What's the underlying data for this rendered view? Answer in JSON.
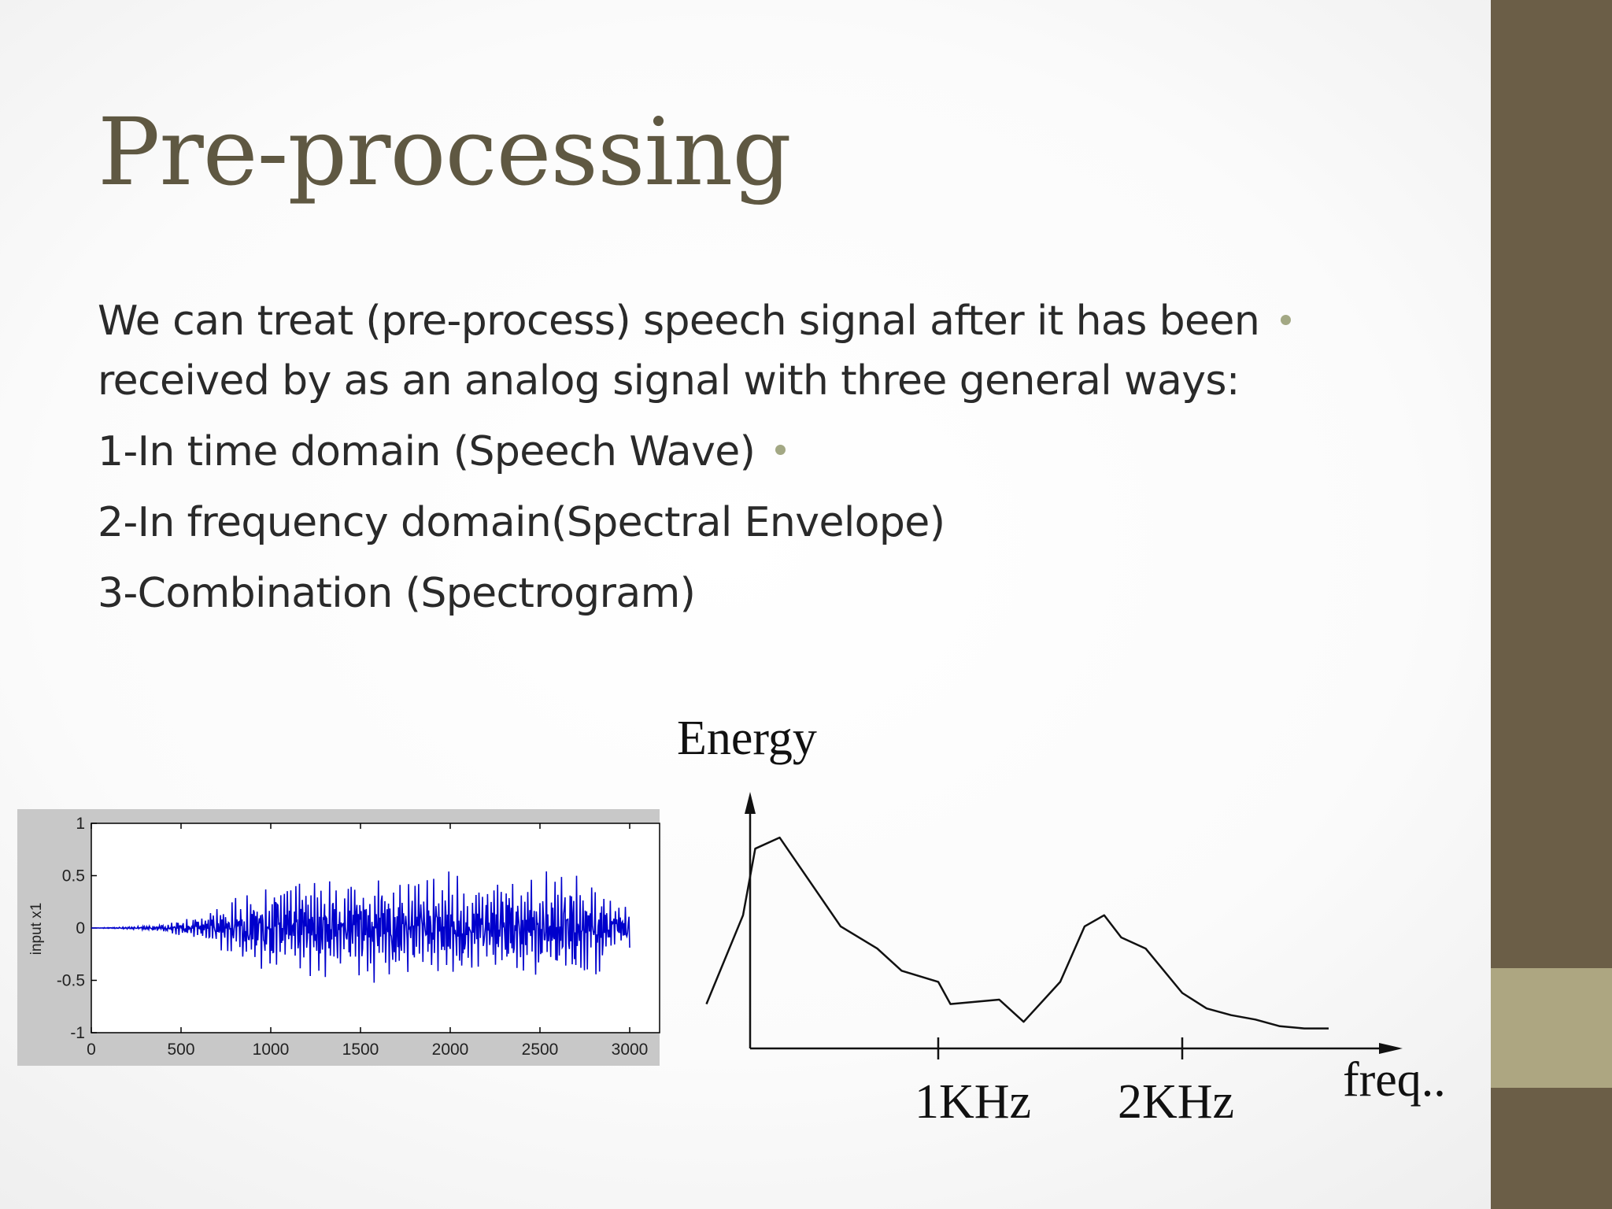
{
  "slide": {
    "title": "Pre-processing",
    "paragraph_line1": "We can treat (pre-process) speech signal after it has been",
    "paragraph_line2": "received by as an analog signal with three general ways:",
    "items": [
      "1-In time domain (Speech Wave)",
      "2-In frequency domain(Spectral Envelope)",
      "3-Combination (Spectrogram)"
    ]
  },
  "colors": {
    "title": "#5f5842",
    "sidebar": "#6b5e47",
    "sidebar_accent": "#ada681",
    "bullet": "#a3a884",
    "waveform": "#0000cc"
  },
  "chart_data": [
    {
      "type": "line",
      "title": "",
      "xlabel": "",
      "ylabel": "input x1",
      "xlim": [
        0,
        3000
      ],
      "ylim": [
        -1,
        1
      ],
      "x_ticks": [
        "0",
        "500",
        "1000",
        "1500",
        "2000",
        "2500",
        "3000"
      ],
      "y_ticks": [
        "1",
        "0.5",
        "0",
        "-0.5",
        "-1"
      ],
      "grid": false,
      "series": [
        {
          "values_description_points": [
            [
              0,
              0
            ],
            [
              200,
              0.01
            ],
            [
              400,
              0.03
            ],
            [
              600,
              0.1
            ],
            [
              800,
              0.25
            ],
            [
              1000,
              0.35
            ],
            [
              1200,
              0.4
            ],
            [
              1400,
              0.38
            ],
            [
              1600,
              0.42
            ],
            [
              1800,
              0.4
            ],
            [
              2000,
              0.45
            ],
            [
              2200,
              0.4
            ],
            [
              2400,
              0.42
            ],
            [
              2600,
              0.45
            ],
            [
              2800,
              0.4
            ],
            [
              3000,
              0.15
            ]
          ]
        }
      ]
    },
    {
      "type": "line",
      "title": "",
      "xlabel": "freq..",
      "ylabel": "Energy",
      "x_ticks": [
        "1KHz",
        "2KHz"
      ],
      "grid": false,
      "series": [
        {
          "x": [
            0.05,
            0.2,
            0.25,
            0.35,
            0.6,
            0.75,
            0.85,
            1.0,
            1.05,
            1.25,
            1.35,
            1.5,
            1.6,
            1.68,
            1.75,
            1.85,
            2.0,
            2.1,
            2.2,
            2.3,
            2.4,
            2.5,
            2.6
          ],
          "y": [
            0.2,
            0.6,
            0.9,
            0.95,
            0.55,
            0.45,
            0.35,
            0.3,
            0.2,
            0.22,
            0.12,
            0.3,
            0.55,
            0.6,
            0.5,
            0.45,
            0.25,
            0.18,
            0.15,
            0.13,
            0.1,
            0.09,
            0.09
          ]
        }
      ]
    }
  ]
}
